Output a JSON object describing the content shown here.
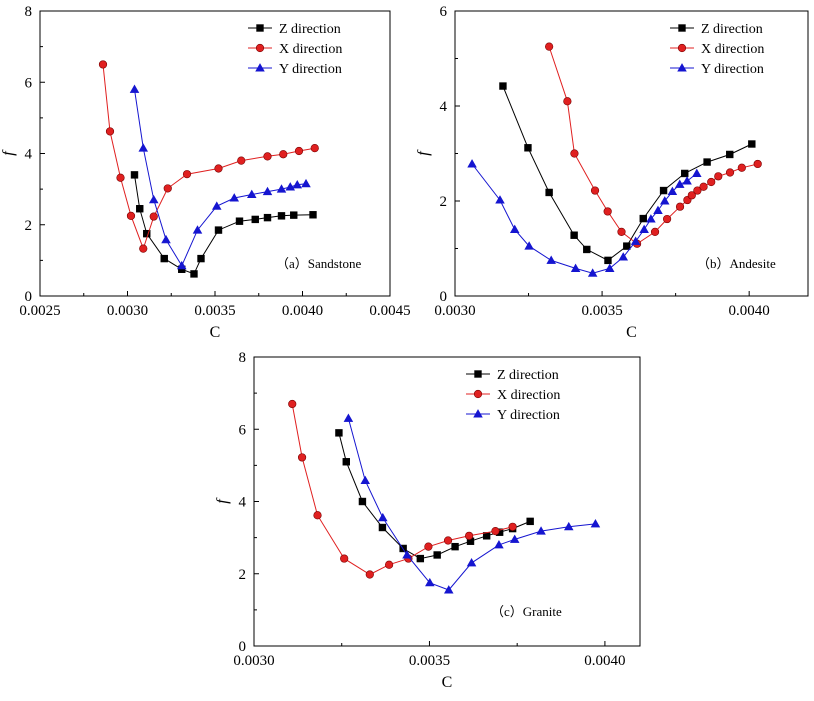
{
  "colors": {
    "Z": "#000000",
    "X": "#e02020",
    "Y": "#1515d0",
    "axis": "#000000"
  },
  "chart_data": [
    {
      "type": "line",
      "annotation": "（a）Sandstone",
      "xlabel": "C",
      "ylabel": "f",
      "xlim": [
        0.0025,
        0.0045
      ],
      "ylim": [
        0,
        8
      ],
      "xticks": [
        "0.0025",
        "0.0030",
        "0.0035",
        "0.0040",
        "0.0045"
      ],
      "xtick_values": [
        0.0025,
        0.003,
        0.0035,
        0.004,
        0.0045
      ],
      "yticks": [
        "0",
        "2",
        "4",
        "6",
        "8"
      ],
      "ytick_values": [
        0,
        2,
        4,
        6,
        8
      ],
      "grid": false,
      "legend_position": "top-right",
      "series": [
        {
          "name": "Z direction",
          "key": "Z",
          "marker": "square",
          "x": [
            0.00304,
            0.00307,
            0.00311,
            0.00321,
            0.00331,
            0.00338,
            0.00342,
            0.00352,
            0.00364,
            0.00373,
            0.0038,
            0.00388,
            0.00395,
            0.00406
          ],
          "y": [
            3.4,
            2.45,
            1.75,
            1.05,
            0.75,
            0.62,
            1.05,
            1.85,
            2.1,
            2.15,
            2.2,
            2.25,
            2.27,
            2.28
          ]
        },
        {
          "name": "X direction",
          "key": "X",
          "marker": "circle",
          "x": [
            0.00286,
            0.0029,
            0.00296,
            0.00302,
            0.00309,
            0.00315,
            0.00323,
            0.00334,
            0.00352,
            0.00365,
            0.0038,
            0.00389,
            0.00398,
            0.00407
          ],
          "y": [
            6.5,
            4.62,
            3.32,
            2.25,
            1.33,
            2.23,
            3.02,
            3.42,
            3.58,
            3.8,
            3.92,
            3.98,
            4.07,
            4.15
          ]
        },
        {
          "name": "Y direction",
          "key": "Y",
          "marker": "triangle",
          "x": [
            0.00304,
            0.00309,
            0.00315,
            0.00322,
            0.00331,
            0.0034,
            0.00351,
            0.00361,
            0.00371,
            0.0038,
            0.00388,
            0.00393,
            0.00397,
            0.00402
          ],
          "y": [
            5.8,
            4.15,
            2.7,
            1.58,
            0.85,
            1.85,
            2.52,
            2.75,
            2.85,
            2.93,
            3.0,
            3.06,
            3.12,
            3.15
          ]
        }
      ]
    },
    {
      "type": "line",
      "annotation": "（b）Andesite",
      "xlabel": "C",
      "ylabel": "f",
      "xlim": [
        0.003,
        0.0042
      ],
      "ylim": [
        0,
        6
      ],
      "xticks": [
        "0.0030",
        "0.0035",
        "0.0040"
      ],
      "xtick_values": [
        0.003,
        0.0035,
        0.004
      ],
      "yticks": [
        "0",
        "2",
        "4",
        "6"
      ],
      "ytick_values": [
        0,
        2,
        4,
        6
      ],
      "grid": false,
      "legend_position": "top-right",
      "series": [
        {
          "name": "Z direction",
          "key": "Z",
          "marker": "square",
          "x": [
            0.003163,
            0.003248,
            0.00332,
            0.003405,
            0.003448,
            0.00352,
            0.003584,
            0.00364,
            0.003709,
            0.003781,
            0.003857,
            0.003934,
            0.004009
          ],
          "y": [
            4.42,
            3.12,
            2.18,
            1.28,
            0.98,
            0.75,
            1.05,
            1.63,
            2.22,
            2.58,
            2.82,
            2.98,
            3.2
          ]
        },
        {
          "name": "X direction",
          "key": "X",
          "marker": "circle",
          "x": [
            0.00332,
            0.003382,
            0.003406,
            0.003476,
            0.003519,
            0.003566,
            0.003619,
            0.00368,
            0.003721,
            0.003765,
            0.00379,
            0.003805,
            0.003824,
            0.003845,
            0.003871,
            0.003895,
            0.003935,
            0.003975,
            0.004029
          ],
          "y": [
            5.25,
            4.1,
            3.0,
            2.22,
            1.78,
            1.35,
            1.1,
            1.35,
            1.62,
            1.88,
            2.02,
            2.12,
            2.22,
            2.3,
            2.4,
            2.52,
            2.6,
            2.7,
            2.78
          ]
        },
        {
          "name": "Y direction",
          "key": "Y",
          "marker": "triangle",
          "x": [
            0.003058,
            0.003153,
            0.003203,
            0.003252,
            0.003327,
            0.00341,
            0.003468,
            0.003526,
            0.003572,
            0.003614,
            0.003643,
            0.003666,
            0.00369,
            0.003713,
            0.003739,
            0.003764,
            0.003789,
            0.003822
          ],
          "y": [
            2.78,
            2.02,
            1.4,
            1.05,
            0.75,
            0.58,
            0.48,
            0.58,
            0.82,
            1.15,
            1.4,
            1.62,
            1.8,
            2.0,
            2.2,
            2.35,
            2.42,
            2.58
          ]
        }
      ]
    },
    {
      "type": "line",
      "annotation": "（c）Granite",
      "xlabel": "C",
      "ylabel": "f",
      "xlim": [
        0.003,
        0.0041
      ],
      "ylim": [
        0,
        8
      ],
      "xticks": [
        "0.0030",
        "0.0035",
        "0.0040"
      ],
      "xtick_values": [
        0.003,
        0.0035,
        0.004
      ],
      "yticks": [
        "0",
        "2",
        "4",
        "6",
        "8"
      ],
      "ytick_values": [
        0,
        2,
        4,
        6,
        8
      ],
      "grid": false,
      "legend_position": "top-right",
      "series": [
        {
          "name": "Z direction",
          "key": "Z",
          "marker": "square",
          "x": [
            0.003242,
            0.003263,
            0.003309,
            0.003366,
            0.003425,
            0.003474,
            0.003522,
            0.003573,
            0.003617,
            0.003663,
            0.0037,
            0.003737,
            0.003787
          ],
          "y": [
            5.9,
            5.1,
            4.0,
            3.28,
            2.7,
            2.42,
            2.52,
            2.75,
            2.9,
            3.05,
            3.15,
            3.25,
            3.45
          ]
        },
        {
          "name": "X direction",
          "key": "X",
          "marker": "circle",
          "x": [
            0.003109,
            0.003137,
            0.003181,
            0.003257,
            0.00333,
            0.003385,
            0.00344,
            0.003497,
            0.003553,
            0.003613,
            0.003688,
            0.003737
          ],
          "y": [
            6.7,
            5.22,
            3.62,
            2.42,
            1.98,
            2.25,
            2.42,
            2.75,
            2.92,
            3.05,
            3.18,
            3.3
          ]
        },
        {
          "name": "Y direction",
          "key": "Y",
          "marker": "triangle",
          "x": [
            0.003269,
            0.003317,
            0.003367,
            0.003436,
            0.003501,
            0.003555,
            0.00362,
            0.003698,
            0.003743,
            0.003818,
            0.003897,
            0.003973
          ],
          "y": [
            6.3,
            4.58,
            3.55,
            2.52,
            1.75,
            1.55,
            2.3,
            2.8,
            2.95,
            3.18,
            3.3,
            3.38
          ]
        }
      ]
    }
  ]
}
